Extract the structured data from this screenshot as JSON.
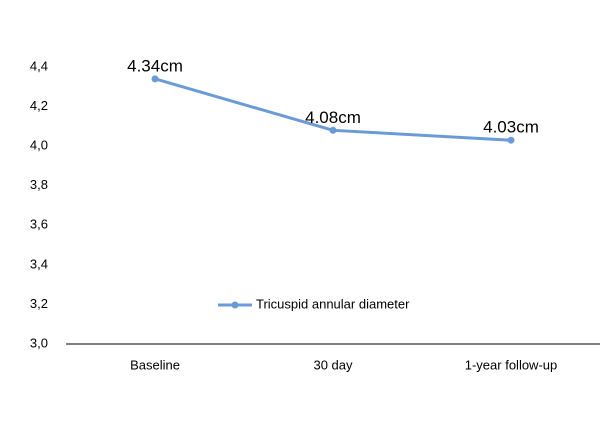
{
  "chart_data": {
    "type": "line",
    "categories": [
      "Baseline",
      "30 day",
      "1-year follow-up"
    ],
    "series": [
      {
        "name": "Tricuspid annular diameter",
        "color": "#6a9bd8",
        "values": [
          4.34,
          4.08,
          4.03
        ],
        "value_labels": [
          "4.34cm",
          "4.08cm",
          "4.03cm"
        ]
      }
    ],
    "ylim": [
      3.0,
      4.4
    ],
    "yticks": [
      {
        "value": 3.0,
        "label": "3,0"
      },
      {
        "value": 3.2,
        "label": "3,2"
      },
      {
        "value": 3.4,
        "label": "3,4"
      },
      {
        "value": 3.6,
        "label": "3,6"
      },
      {
        "value": 3.8,
        "label": "3,8"
      },
      {
        "value": 4.0,
        "label": "4,0"
      },
      {
        "value": 4.2,
        "label": "4,2"
      },
      {
        "value": 4.4,
        "label": "4,4"
      }
    ],
    "grid": false,
    "legend": "center"
  }
}
